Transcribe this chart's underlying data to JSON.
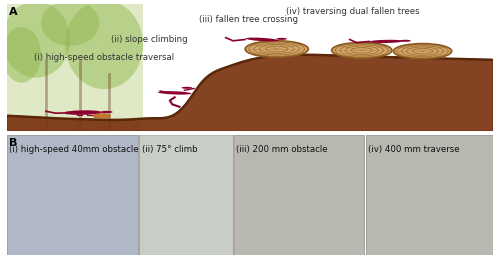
{
  "panel_A_label": "A",
  "panel_B_label": "B",
  "label_i_A": "(i) high-speed obstacle traversal",
  "label_ii_A": "(ii) slope climbing",
  "label_iii_A": "(iii) fallen tree crossing",
  "label_iv_A": "(iv) traversing dual fallen trees",
  "label_i_B": "(i) high-speed 40mm obstacle",
  "label_ii_B": "(ii) 75° climb",
  "label_iii_B": "(iii) 200 mm obstacle",
  "label_iv_B": "(iv) 400 mm traverse",
  "ground_color": "#7a3310",
  "lizard_color": "#8b0030",
  "tree_trunk_fill": "#d4a86a",
  "tree_trunk_edge": "#8b5a20",
  "text_color": "#333333",
  "border_color": "#888888",
  "fig_bg": "#ffffff",
  "font_size_label": 6.2,
  "font_size_panel": 8,
  "tree_green_left": "#b8d080",
  "tree_green_mid": "#c8d8a0",
  "sky_color": "#e8eedc",
  "right_bg": "#f5f5f0",
  "photo_i_color": "#b0b8c8",
  "photo_ii_color": "#c0c8c0",
  "photo_iii_iv_color": "#b8b8b0",
  "panel_b_bg": "#d8d8d0",
  "divider_color": "#aaaaaa"
}
